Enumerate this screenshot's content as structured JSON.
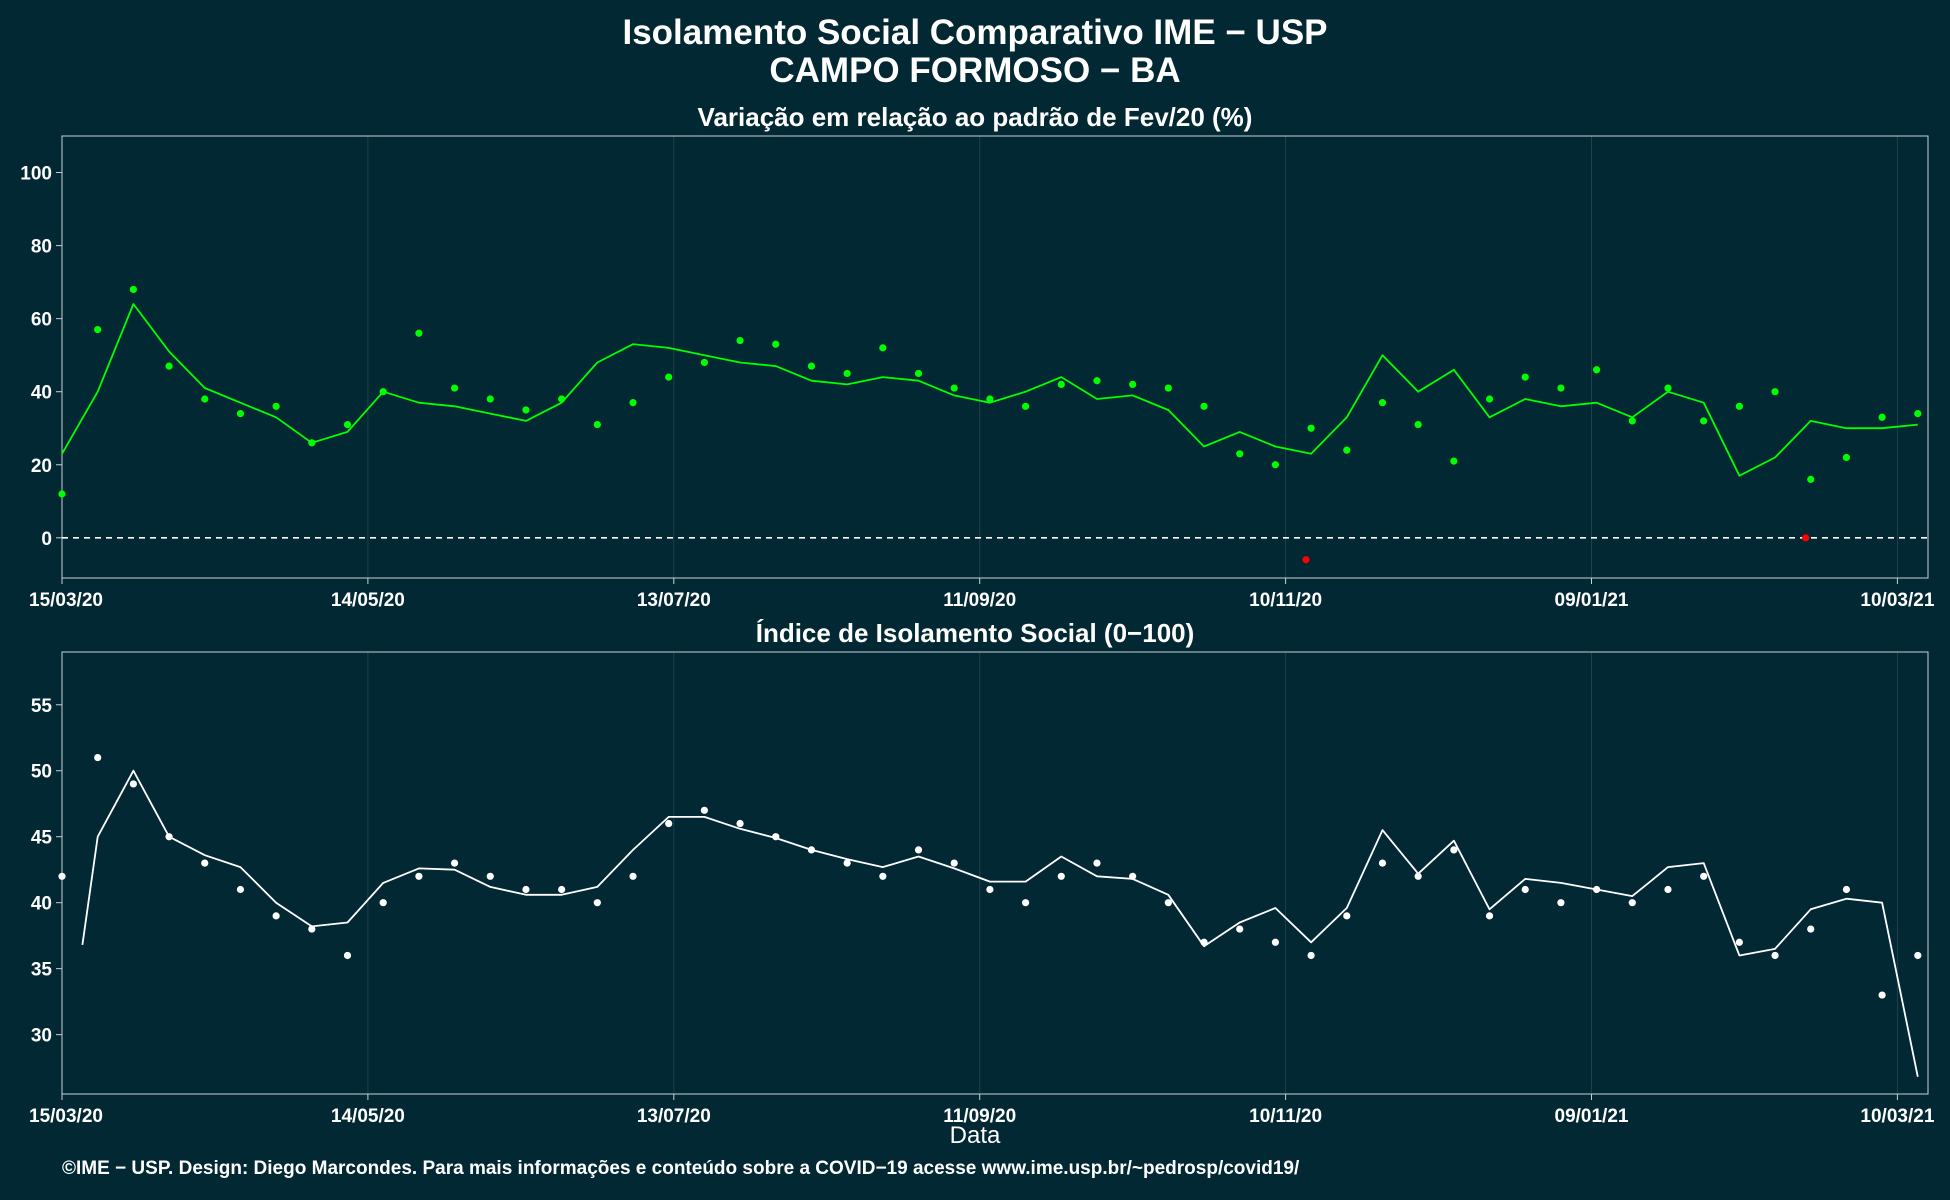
{
  "figure": {
    "title": "Isolamento Social Comparativo IME − USP",
    "subtitle": "CAMPO FORMOSO − BA",
    "xlabel": "Data",
    "footer": "©IME − USP. Design: Diego Marcondes. Para mais informações e conteúdo sobre a COVID−19 acesse www.ime.usp.br/~pedrosp/covid19/",
    "colors": {
      "background": "#022834",
      "panel1_points": "#00ff00",
      "panel1_line": "#00ff00",
      "negative": "#ff0000",
      "panel2": "#ffffff",
      "grid": "#20404a",
      "axis": "#c8d0d4"
    }
  },
  "chart_data": [
    {
      "type": "scatter",
      "title": "Variação em relação ao padrão de Fev/20 (%)",
      "x_ticks": [
        "15/03/20",
        "14/05/20",
        "13/07/20",
        "11/09/20",
        "10/11/20",
        "09/01/21",
        "10/03/21"
      ],
      "x_tick_days": [
        0,
        60,
        120,
        180,
        240,
        300,
        360
      ],
      "y_ticks": [
        0,
        20,
        40,
        60,
        80,
        100
      ],
      "ylim": [
        -11,
        110
      ],
      "x_range_days": [
        0,
        366
      ],
      "reference_line": 0,
      "daily_points_sampled_every_7_days": {
        "day": [
          0,
          7,
          14,
          21,
          28,
          35,
          42,
          49,
          56,
          63,
          70,
          77,
          84,
          91,
          98,
          105,
          112,
          119,
          126,
          133,
          140,
          147,
          154,
          161,
          168,
          175,
          182,
          189,
          196,
          203,
          210,
          217,
          224,
          231,
          238,
          245,
          252,
          259,
          266,
          273,
          280,
          287,
          294,
          301,
          308,
          315,
          322,
          329,
          336,
          343,
          350,
          357,
          364
        ],
        "value": [
          12,
          57,
          68,
          47,
          38,
          34,
          36,
          26,
          31,
          40,
          56,
          41,
          38,
          35,
          38,
          31,
          37,
          44,
          48,
          54,
          53,
          47,
          45,
          52,
          45,
          41,
          38,
          36,
          42,
          43,
          42,
          41,
          36,
          23,
          20,
          30,
          24,
          37,
          31,
          21,
          38,
          44,
          41,
          46,
          32,
          41,
          32,
          36,
          40,
          16,
          22,
          33,
          34
        ]
      },
      "moving_average_weekly": {
        "day": [
          0,
          7,
          14,
          21,
          28,
          35,
          42,
          49,
          56,
          63,
          70,
          77,
          84,
          91,
          98,
          105,
          112,
          119,
          126,
          133,
          140,
          147,
          154,
          161,
          168,
          175,
          182,
          189,
          196,
          203,
          210,
          217,
          224,
          231,
          238,
          245,
          252,
          259,
          266,
          273,
          280,
          287,
          294,
          301,
          308,
          315,
          322,
          329,
          336,
          343,
          350,
          357,
          364
        ],
        "value": [
          23,
          40,
          64,
          51,
          41,
          37,
          33,
          26,
          29,
          40,
          37,
          36,
          34,
          32,
          37,
          48,
          53,
          52,
          50,
          48,
          47,
          43,
          42,
          44,
          43,
          39,
          37,
          40,
          44,
          38,
          39,
          35,
          25,
          29,
          25,
          23,
          33,
          50,
          40,
          46,
          33,
          38,
          36,
          37,
          33,
          40,
          37,
          17,
          22,
          32,
          30,
          30,
          31
        ]
      },
      "negative_points": [
        {
          "day": 244,
          "value": -6
        },
        {
          "day": 342,
          "value": 0
        }
      ]
    },
    {
      "type": "scatter",
      "title": "Índice de Isolamento Social (0−100)",
      "x_ticks": [
        "15/03/20",
        "14/05/20",
        "13/07/20",
        "11/09/20",
        "10/11/20",
        "09/01/21",
        "10/03/21"
      ],
      "x_tick_days": [
        0,
        60,
        120,
        180,
        240,
        300,
        360
      ],
      "y_ticks": [
        30,
        35,
        40,
        45,
        50,
        55
      ],
      "ylim": [
        25.5,
        59
      ],
      "x_range_days": [
        0,
        366
      ],
      "daily_points_sampled_every_7_days": {
        "day": [
          0,
          7,
          14,
          21,
          28,
          35,
          42,
          49,
          56,
          63,
          70,
          77,
          84,
          91,
          98,
          105,
          112,
          119,
          126,
          133,
          140,
          147,
          154,
          161,
          168,
          175,
          182,
          189,
          196,
          203,
          210,
          217,
          224,
          231,
          238,
          245,
          252,
          259,
          266,
          273,
          280,
          287,
          294,
          301,
          308,
          315,
          322,
          329,
          336,
          343,
          350,
          357,
          364
        ],
        "value": [
          42,
          51,
          49,
          45,
          43,
          41,
          39,
          38,
          36,
          40,
          42,
          43,
          42,
          41,
          41,
          40,
          42,
          46,
          47,
          46,
          45,
          44,
          43,
          42,
          44,
          43,
          41,
          40,
          42,
          43,
          42,
          40,
          37,
          38,
          37,
          36,
          39,
          43,
          42,
          44,
          39,
          41,
          40,
          41,
          40,
          41,
          42,
          37,
          36,
          38,
          41,
          33,
          36
        ]
      },
      "moving_average_weekly": {
        "day": [
          4,
          7,
          14,
          21,
          28,
          35,
          42,
          49,
          56,
          63,
          70,
          77,
          84,
          91,
          98,
          105,
          112,
          119,
          126,
          133,
          140,
          147,
          154,
          161,
          168,
          175,
          182,
          189,
          196,
          203,
          210,
          217,
          224,
          231,
          238,
          245,
          252,
          259,
          266,
          273,
          280,
          287,
          294,
          301,
          308,
          315,
          322,
          329,
          336,
          343,
          350,
          357,
          364
        ],
        "value": [
          36.8,
          45,
          50,
          45,
          43.6,
          42.7,
          40,
          38.2,
          38.5,
          41.5,
          42.6,
          42.5,
          41.2,
          40.6,
          40.6,
          41.2,
          44,
          46.5,
          46.5,
          45.6,
          44.9,
          44,
          43.3,
          42.7,
          43.5,
          42.6,
          41.6,
          41.6,
          43.5,
          42,
          41.8,
          40.6,
          36.7,
          38.5,
          39.6,
          37,
          39.6,
          45.5,
          42.2,
          44.7,
          39.5,
          41.8,
          41.5,
          41,
          40.5,
          42.7,
          43,
          36,
          36.5,
          39.5,
          40.3,
          40,
          26.8
        ]
      }
    }
  ]
}
